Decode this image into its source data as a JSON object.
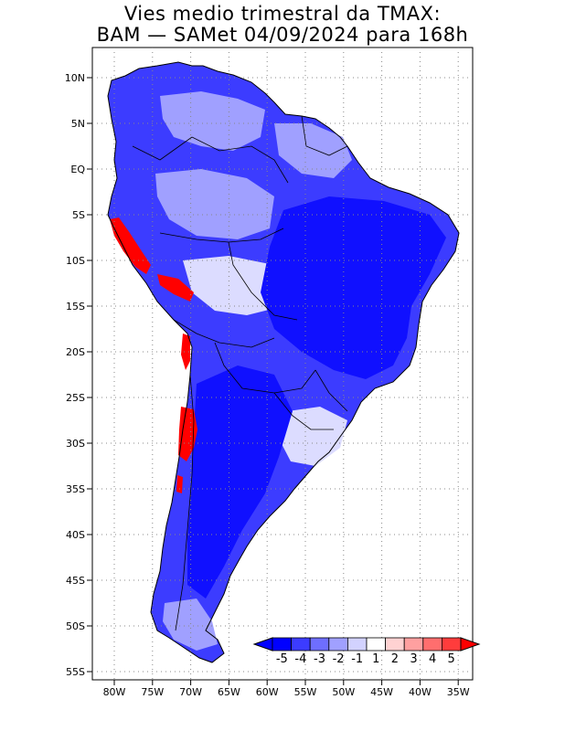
{
  "title": {
    "line1": "Vies medio trimestral da TMAX:",
    "line2": "BAM — SAMet 04/09/2024  para 168h"
  },
  "lat_labels": [
    "10N",
    "5N",
    "EQ",
    "5S",
    "10S",
    "15S",
    "20S",
    "25S",
    "30S",
    "35S",
    "40S",
    "45S",
    "50S",
    "55S"
  ],
  "lon_labels": [
    "80W",
    "75W",
    "70W",
    "65W",
    "60W",
    "55W",
    "50W",
    "45W",
    "40W",
    "35W"
  ],
  "colorbar": {
    "labels": [
      "-5",
      "-4",
      "-3",
      "-2",
      "-1",
      "1",
      "2",
      "3",
      "4",
      "5"
    ],
    "colors": [
      "#0000ff",
      "#3c3cff",
      "#6e6eff",
      "#a0a0ff",
      "#d2d2ff",
      "#ffffff",
      "#ffd2d2",
      "#ffa0a0",
      "#ff6e6e",
      "#ff3c3c"
    ],
    "under_color": "#0000ff",
    "over_color": "#ff0000"
  },
  "map_colors": {
    "land_base": "#3c3cff",
    "deep_negative": "#1010ff",
    "moderate_negative": "#6e6eff",
    "weak_negative": "#a0a0ff",
    "near_zero": "#dcdcff",
    "neutral": "#ffffff",
    "positive": "#ff5050",
    "strong_positive": "#ff0000",
    "grid": "#888888",
    "borders": "#000000"
  }
}
